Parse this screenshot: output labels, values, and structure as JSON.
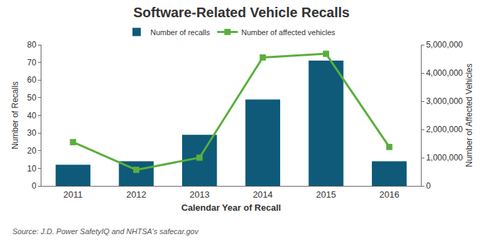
{
  "chart_data": {
    "type": "bar",
    "title": "Software-Related Vehicle Recalls",
    "x_label": "Calendar Year of Recall",
    "y_label": "Number of Recalls",
    "y2_label": "Number of Affected Vehicles",
    "annotations": [
      "Source: J.D. Power SafetyIQ and NHTSA's safecar.gov"
    ],
    "categories": [
      "2011",
      "2012",
      "2013",
      "2014",
      "2015",
      "2016"
    ],
    "series": [
      {
        "name": "Number of recalls",
        "type": "bar",
        "color": "#0e5a78",
        "values": [
          12,
          14,
          29,
          49,
          71,
          14
        ]
      },
      {
        "name": "Number of affected vehicles",
        "type": "line",
        "axis": "y2",
        "color": "#5aae3c",
        "marker": "square",
        "line_style": "solid",
        "values": [
          1550000,
          570000,
          1000000,
          4550000,
          4680000,
          1380000
        ]
      }
    ],
    "ylim": [
      0,
      80
    ],
    "yticks": [
      0,
      10,
      20,
      30,
      40,
      50,
      60,
      70,
      80
    ],
    "y2lim": [
      0,
      5000000
    ],
    "y2ticks": [
      0,
      {
        "value": 1000000,
        "label": "1,000,000"
      },
      {
        "value": 2000000,
        "label": "2,000,000"
      },
      {
        "value": 3000000,
        "label": "3,000,000"
      },
      {
        "value": 4000000,
        "label": "4,000,000"
      },
      {
        "value": 5000000,
        "label": "5,000,000"
      }
    ],
    "grid": false,
    "legend": "top"
  }
}
